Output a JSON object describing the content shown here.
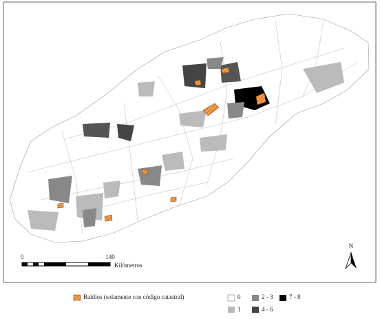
{
  "scale_bar": {
    "start": "0",
    "end": "140",
    "unit": "Kilómetros"
  },
  "north_arrow": "N",
  "legend": {
    "wasteland": "Baldíos (solamente con código catastral)",
    "classes": [
      "0",
      "1",
      "2 - 3",
      "4 - 6",
      "7 - 8"
    ]
  }
}
